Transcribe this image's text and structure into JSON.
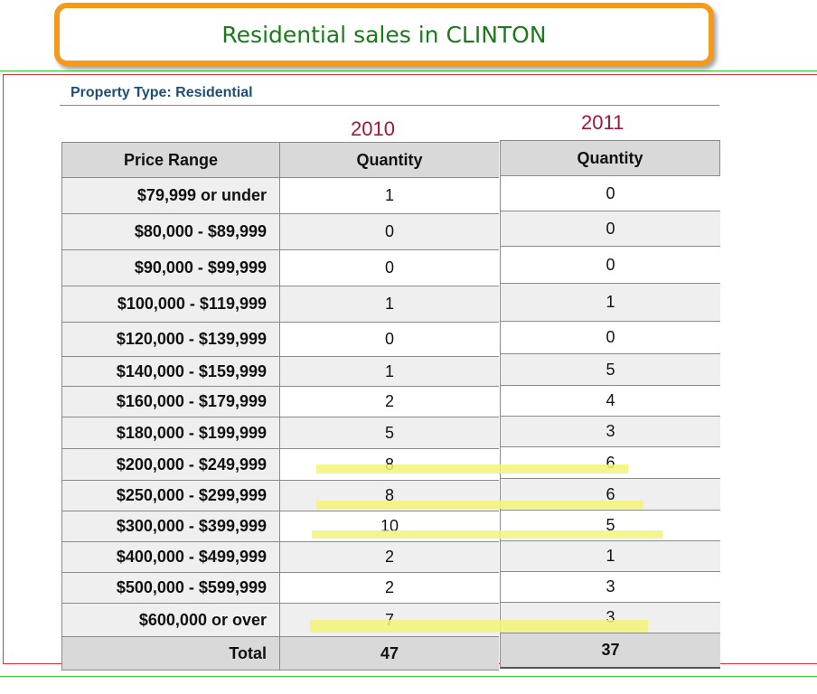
{
  "title": "Residential sales in CLINTON",
  "property_type": "Property Type: Residential",
  "years": [
    "2010",
    "2011"
  ],
  "headers": {
    "price_range": "Price Range",
    "quantity_2010": "Quantity",
    "quantity_2011": "Quantity"
  },
  "rows": [
    {
      "range": "$79,999 or under",
      "q2010": "1",
      "q2011": "0"
    },
    {
      "range": "$80,000 - $89,999",
      "q2010": "0",
      "q2011": "0"
    },
    {
      "range": "$90,000 - $99,999",
      "q2010": "0",
      "q2011": "0"
    },
    {
      "range": "$100,000 - $119,999",
      "q2010": "1",
      "q2011": "1"
    },
    {
      "range": "$120,000 - $139,999",
      "q2010": "0",
      "q2011": "0"
    },
    {
      "range": "$140,000 - $159,999",
      "q2010": "1",
      "q2011": "5"
    },
    {
      "range": "$160,000 - $179,999",
      "q2010": "2",
      "q2011": "4"
    },
    {
      "range": "$180,000 - $199,999",
      "q2010": "5",
      "q2011": "3"
    },
    {
      "range": "$200,000 - $249,999",
      "q2010": "8",
      "q2011": "6"
    },
    {
      "range": "$250,000 - $299,999",
      "q2010": "8",
      "q2011": "6"
    },
    {
      "range": "$300,000 - $399,999",
      "q2010": "10",
      "q2011": "5"
    },
    {
      "range": "$400,000 - $499,999",
      "q2010": "2",
      "q2011": "1"
    },
    {
      "range": "$500,000 - $599,999",
      "q2010": "2",
      "q2011": "3"
    },
    {
      "range": "$600,000 or over",
      "q2010": "7",
      "q2011": "3"
    }
  ],
  "total": {
    "label": "Total",
    "q2010": "47",
    "q2011": "37"
  },
  "highlight_color": "#f3f37a",
  "accent_border": "#f39a1b",
  "title_color": "#1c7a1c"
}
